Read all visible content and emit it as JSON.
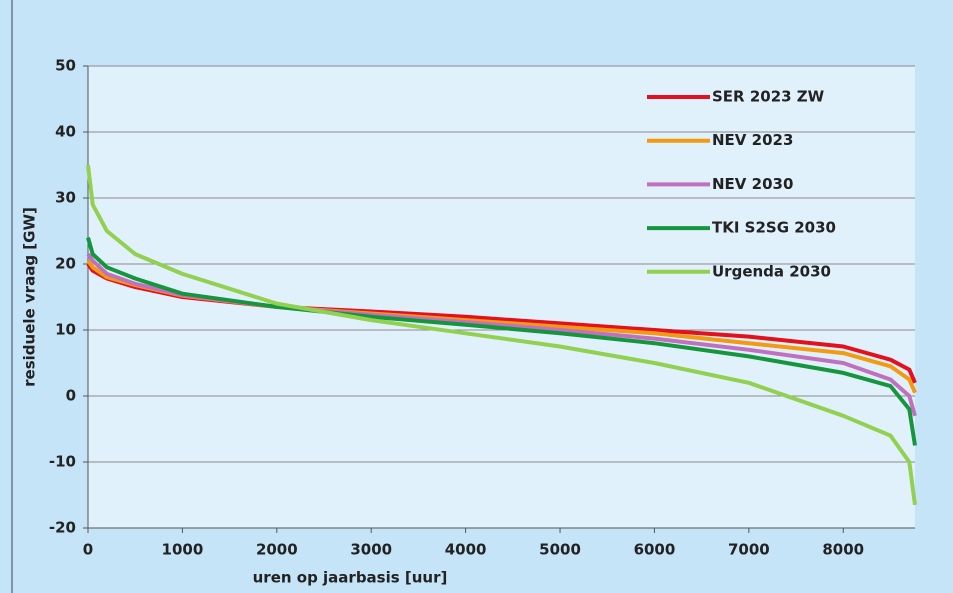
{
  "chart_data": {
    "type": "line",
    "x_label": "uren op jaarbasis [uur]",
    "y_label": "residuele vraag [GW]",
    "x": [
      0,
      50,
      200,
      500,
      1000,
      2000,
      3000,
      4000,
      5000,
      6000,
      7000,
      8000,
      8500,
      8700,
      8760
    ],
    "series": [
      {
        "name": "SER 2023 ZW",
        "color": "#e3101e",
        "values": [
          20,
          19,
          17.8,
          16.5,
          15,
          13.5,
          12.8,
          12,
          11,
          10,
          9,
          7.5,
          5.5,
          4,
          2
        ]
      },
      {
        "name": "NEV 2023",
        "color": "#f29a12",
        "values": [
          20.5,
          19.5,
          18,
          16.8,
          15.2,
          13.5,
          12.5,
          11.5,
          10.5,
          9.5,
          8,
          6.5,
          4.5,
          2.5,
          0.5
        ]
      },
      {
        "name": "NEV 2030",
        "color": "#c070bf",
        "values": [
          21.5,
          20.5,
          18.5,
          17,
          15.3,
          13.5,
          12.3,
          11.2,
          10,
          8.7,
          7,
          5,
          2.5,
          0,
          -3
        ]
      },
      {
        "name": "TKI S2SG 2030",
        "color": "#16963c",
        "values": [
          24,
          21.5,
          19.5,
          17.8,
          15.5,
          13.5,
          12,
          10.8,
          9.5,
          8,
          6,
          3.5,
          1.5,
          -2,
          -7.5
        ]
      },
      {
        "name": "Urgenda 2030",
        "color": "#92d050",
        "values": [
          35,
          29,
          25,
          21.5,
          18.5,
          14,
          11.5,
          9.5,
          7.5,
          5,
          2,
          -3,
          -6,
          -10,
          -16.5
        ]
      }
    ],
    "xlim": [
      0,
      8760
    ],
    "xticks": [
      0,
      1000,
      2000,
      3000,
      4000,
      5000,
      6000,
      7000,
      8000
    ],
    "ylim": [
      -20,
      50
    ],
    "yticks": [
      -20,
      -10,
      0,
      10,
      20,
      30,
      40,
      50
    ],
    "grid": true,
    "legend": "upper right"
  }
}
